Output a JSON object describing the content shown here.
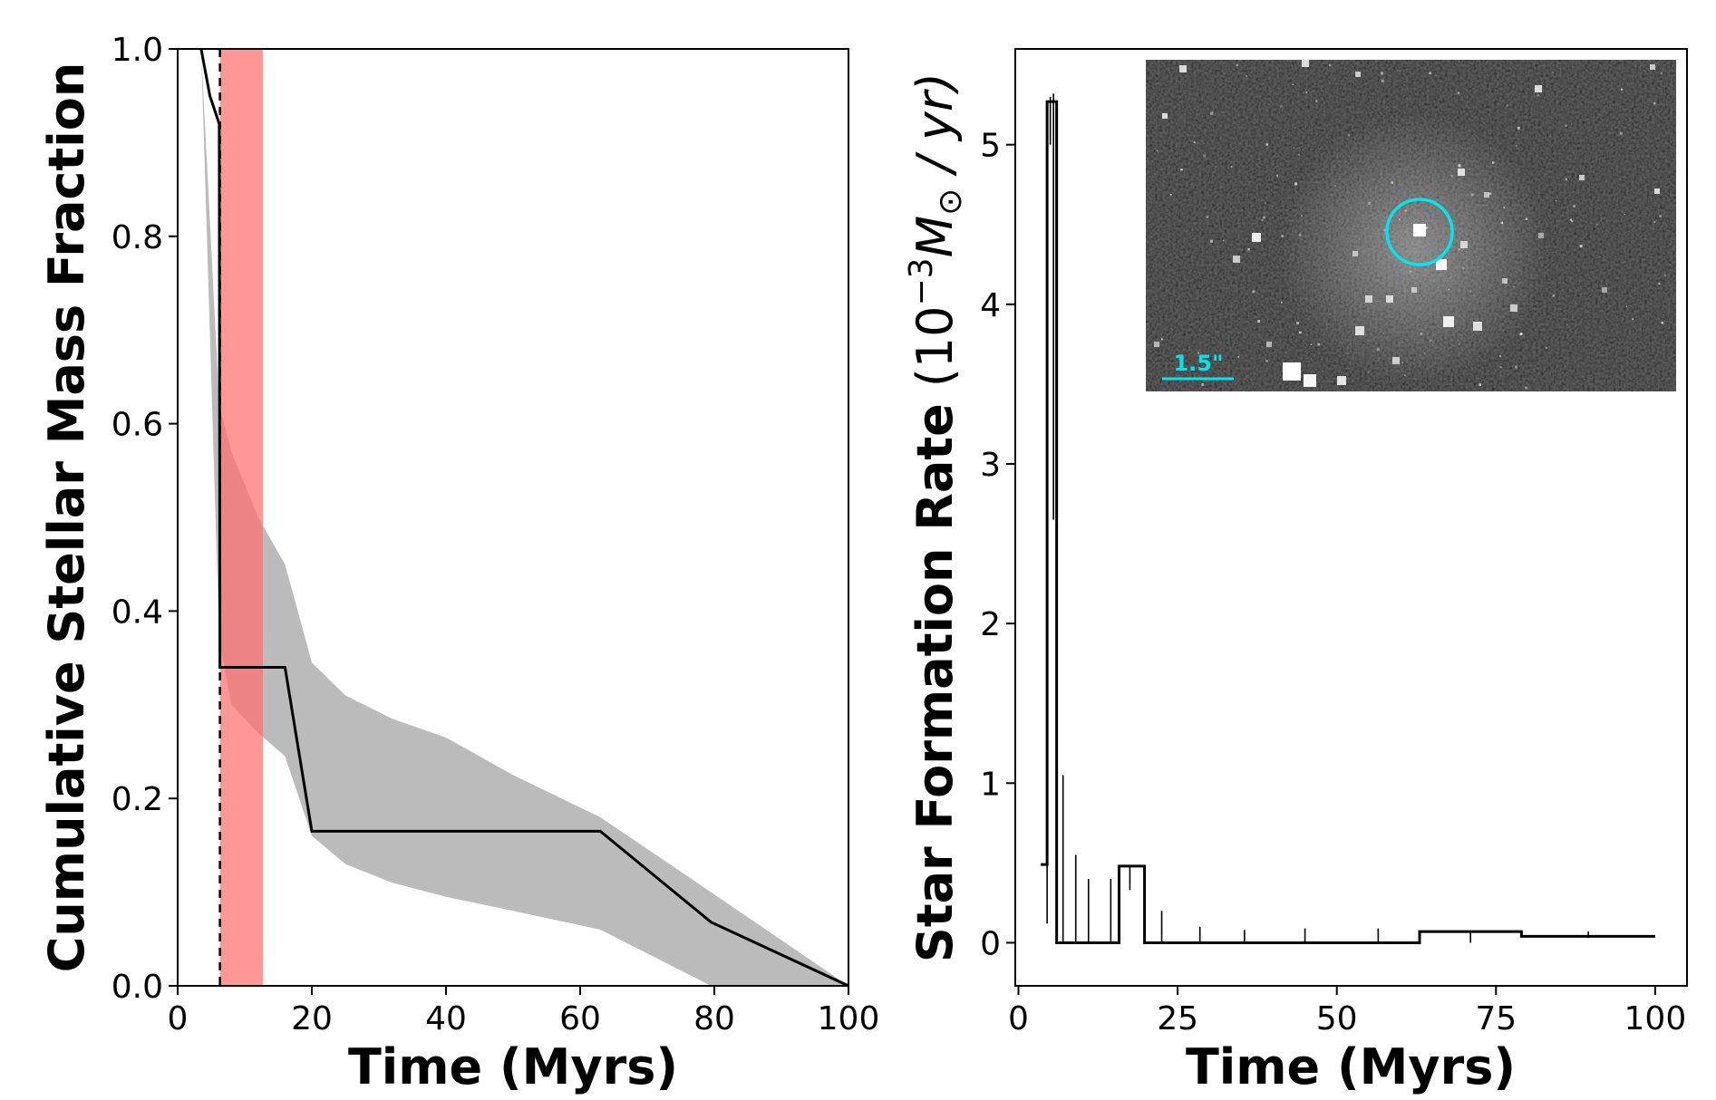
{
  "chart_data": [
    {
      "type": "line",
      "xlabel": "Time (Myrs)",
      "ylabel": "Cumulative Stellar Mass Fraction",
      "xlim": [
        0,
        100
      ],
      "ylim": [
        0,
        1.0
      ],
      "xticks": [
        0,
        20,
        40,
        60,
        80,
        100
      ],
      "yticks": [
        0.0,
        0.2,
        0.4,
        0.6,
        0.8,
        1.0
      ],
      "xtick_labels": [
        "0",
        "20",
        "40",
        "60",
        "80",
        "100"
      ],
      "ytick_labels": [
        "0.0",
        "0.2",
        "0.4",
        "0.6",
        "0.8",
        "1.0"
      ],
      "grid": false,
      "series": [
        {
          "x": [
            3.5,
            4.8,
            6.2,
            6.3,
            16.0,
            20.0,
            63.0,
            79.5,
            100.0
          ],
          "y": [
            1.0,
            0.95,
            0.92,
            0.34,
            0.34,
            0.165,
            0.165,
            0.068,
            0.0
          ],
          "color": "#000000"
        }
      ],
      "uncertainty_band": {
        "x": [
          3.5,
          6.2,
          8.0,
          12.0,
          16.0,
          20.0,
          25.0,
          32.0,
          40.0,
          50.0,
          63.0,
          79.5,
          100.0
        ],
        "upper": [
          1.0,
          0.62,
          0.57,
          0.5,
          0.45,
          0.345,
          0.31,
          0.285,
          0.265,
          0.225,
          0.18,
          0.1,
          0.0
        ],
        "lower": [
          1.0,
          0.37,
          0.3,
          0.27,
          0.245,
          0.16,
          0.13,
          0.11,
          0.095,
          0.08,
          0.06,
          0.0,
          0.0
        ],
        "color": "#bbbbbb"
      },
      "shaded_span": {
        "x0": 6.3,
        "x1": 12.7,
        "color": "#ff6f6f"
      },
      "vertical_line": {
        "x": 6.3,
        "style": "dashed",
        "color": "#000000"
      }
    },
    {
      "type": "line",
      "xlabel": "Time (Myrs)",
      "ylabel": "Star Formation Rate (10⁻³M⊙ / yr)",
      "ylabel_text": "Star Formation Rate",
      "ylabel_unit": "(10",
      "ylabel_exp": "−3",
      "ylabel_mass": "M",
      "ylabel_sun": "⊙",
      "ylabel_rate": " / yr)",
      "xlim": [
        -0.5,
        105.0
      ],
      "ylim": [
        -0.27,
        5.6
      ],
      "xticks": [
        0,
        25,
        50,
        75,
        100
      ],
      "yticks": [
        0,
        1,
        2,
        3,
        4,
        5
      ],
      "xtick_labels": [
        "0",
        "25",
        "50",
        "75",
        "100"
      ],
      "ytick_labels": [
        "0",
        "1",
        "2",
        "3",
        "4",
        "5"
      ],
      "grid": false,
      "series": [
        {
          "style": "step",
          "x": [
            3.5,
            4.5,
            4.5,
            6.0,
            6.0,
            15.8,
            15.8,
            19.8,
            19.8,
            63.0,
            63.0,
            79.0,
            79.0,
            100.0
          ],
          "y": [
            0.49,
            0.49,
            5.27,
            5.27,
            0.0,
            0.0,
            0.48,
            0.48,
            0.0,
            0.0,
            0.07,
            0.07,
            0.04,
            0.04
          ],
          "color": "#000000"
        }
      ],
      "error_bars": [
        {
          "x": 4.5,
          "low": 0.12,
          "high": 3.3
        },
        {
          "x": 5.0,
          "low": 5.0,
          "high": 5.3
        },
        {
          "x": 5.5,
          "low": 2.65,
          "high": 5.32
        },
        {
          "x": 7.0,
          "low": 0.0,
          "high": 1.05
        },
        {
          "x": 9.0,
          "low": 0.0,
          "high": 0.55
        },
        {
          "x": 11.0,
          "low": 0.0,
          "high": 0.4
        },
        {
          "x": 14.5,
          "low": 0.0,
          "high": 0.4
        },
        {
          "x": 17.5,
          "low": 0.33,
          "high": 0.48
        },
        {
          "x": 22.5,
          "low": 0.0,
          "high": 0.2
        },
        {
          "x": 28.5,
          "low": 0.0,
          "high": 0.1
        },
        {
          "x": 35.5,
          "low": 0.0,
          "high": 0.08
        },
        {
          "x": 45.0,
          "low": 0.0,
          "high": 0.09
        },
        {
          "x": 56.5,
          "low": 0.0,
          "high": 0.09
        },
        {
          "x": 71.0,
          "low": 0.0,
          "high": 0.07
        },
        {
          "x": 89.5,
          "low": 0.03,
          "high": 0.07
        }
      ],
      "inset": {
        "kind": "grayscale sky image",
        "scale_bar_label": "1.5\"",
        "scale_bar_color": "#00e5ee",
        "circle_color": "#00e5ee"
      }
    }
  ]
}
